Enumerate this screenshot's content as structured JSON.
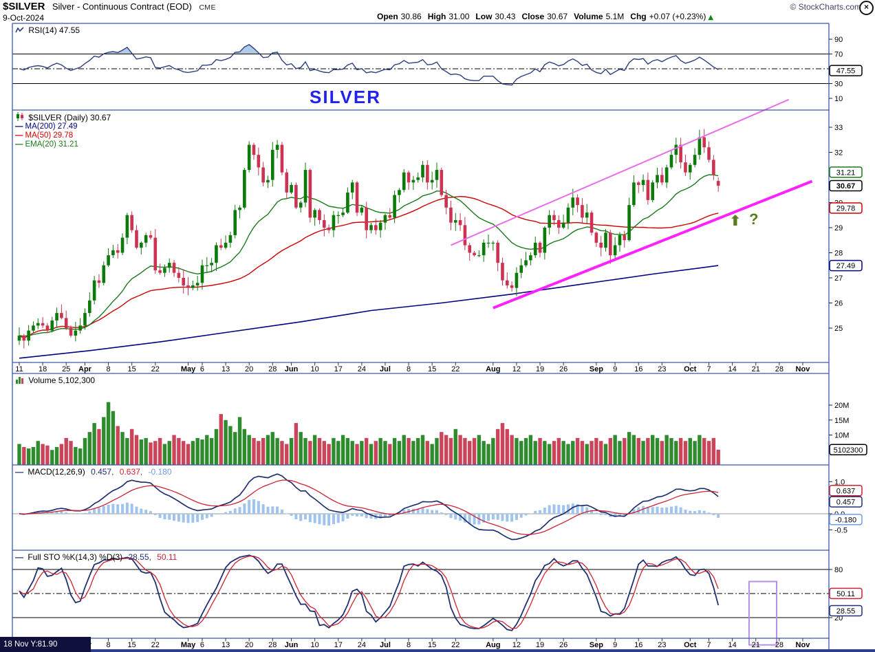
{
  "ui": {
    "legend_dash": "—"
  },
  "header": {
    "symbol": "$SILVER",
    "description": "Silver - Continuous Contract (EOD)",
    "exchange": "CME",
    "date": "9-Oct-2024",
    "copyright": "© StockCharts.com",
    "close_icon": "×",
    "chg_arrow": "▲",
    "quote": [
      {
        "label": "Open",
        "value": "30.86"
      },
      {
        "label": "High",
        "value": "31.00"
      },
      {
        "label": "Low",
        "value": "30.43"
      },
      {
        "label": "Close",
        "value": "30.67"
      },
      {
        "label": "Volume",
        "value": "5.1M"
      },
      {
        "label": "Chg",
        "value": "+0.07 (+0.23%)"
      }
    ]
  },
  "rsi_panel": {
    "label": "RSI(14) 47.55",
    "axis": [
      {
        "t": "90",
        "v": 90
      },
      {
        "t": "70",
        "v": 70
      },
      {
        "t": "30",
        "v": 30
      },
      {
        "t": "10",
        "v": 10
      }
    ],
    "boxes": [
      {
        "text": "47.55",
        "v": 47.55,
        "color": "#000000"
      }
    ],
    "bands": {
      "upper": 70,
      "lower": 30,
      "mid": 50
    }
  },
  "price_panel": {
    "watermark": "SILVER",
    "legend_title": "$SILVER (Daily) 30.67",
    "legend": [
      {
        "label": "MA(200) 27.49",
        "color": "#000080"
      },
      {
        "label": "MA(50) 29.78",
        "color": "#cc0000"
      },
      {
        "label": "EMA(20) 31.21",
        "color": "#1a7a1a"
      }
    ],
    "axis": [
      {
        "t": "33",
        "v": 33
      },
      {
        "t": "32",
        "v": 32
      },
      {
        "t": "30",
        "v": 30
      },
      {
        "t": "29",
        "v": 29
      },
      {
        "t": "28",
        "v": 28
      },
      {
        "t": "27",
        "v": 27
      },
      {
        "t": "26",
        "v": 26
      },
      {
        "t": "25",
        "v": 25
      }
    ],
    "boxes": [
      {
        "text": "31.21",
        "v": 31.21,
        "color": "#1a7a1a"
      },
      {
        "text": "30.67",
        "v": 30.67,
        "color": "#000000",
        "bold": true
      },
      {
        "text": "29.78",
        "v": 29.78,
        "color": "#cc0000"
      },
      {
        "text": "27.49",
        "v": 27.49,
        "color": "#000080"
      }
    ],
    "annotation_arrow": "⬆",
    "annotation_question": "?"
  },
  "volume_panel": {
    "label": "Volume 5,102,300",
    "axis": [
      {
        "t": "20M",
        "v": 20
      },
      {
        "t": "15M",
        "v": 15
      },
      {
        "t": "10M",
        "v": 10
      }
    ],
    "boxes": [
      {
        "text": "5102300",
        "v": 5.102,
        "color": "#000000",
        "w": 54
      }
    ]
  },
  "macd_panel": {
    "label": "MACD(12,26,9)",
    "values": [
      {
        "text": "0.457,",
        "color": "#203070"
      },
      {
        "text": "0.637,",
        "color": "#cc2233"
      },
      {
        "text": "-0.180",
        "color": "#6f9fe0"
      }
    ],
    "axis": [
      {
        "t": "1.0",
        "v": 1.0
      },
      {
        "t": "0.0",
        "v": 0.0
      },
      {
        "t": "-0.5",
        "v": -0.5
      }
    ],
    "boxes": [
      {
        "text": "0.637",
        "v": 0.637,
        "color": "#cc2233",
        "dy": -4
      },
      {
        "text": "0.457",
        "v": 0.457,
        "color": "#203070",
        "dy": 4
      },
      {
        "text": "-0.180",
        "v": -0.18,
        "color": "#6f9fe0"
      }
    ]
  },
  "sto_panel": {
    "label": "Full STO %K(14,3) %D(3)",
    "values": [
      {
        "text": "28.55,",
        "color": "#203070"
      },
      {
        "text": "50.11",
        "color": "#cc2233"
      }
    ],
    "axis": [
      {
        "t": "80",
        "v": 80
      },
      {
        "t": "20",
        "v": 20
      }
    ],
    "boxes": [
      {
        "text": "50.11",
        "v": 50.11,
        "color": "#cc2233"
      },
      {
        "text": "28.55",
        "v": 28.55,
        "color": "#203070"
      }
    ],
    "bands": {
      "upper": 80,
      "lower": 20,
      "mid": 50
    },
    "annotation_box": {
      "i1": 156,
      "i2": 161,
      "v1": 65,
      "v2": -14
    }
  },
  "status_bar": {
    "text": "18 Nov Y:81.90"
  },
  "x_axis": {
    "ticks": [
      {
        "i": 0,
        "t": "11"
      },
      {
        "i": 5,
        "t": "18"
      },
      {
        "i": 10,
        "t": "25"
      },
      {
        "i": 14,
        "t": "Apr",
        "b": true
      },
      {
        "i": 19,
        "t": "8"
      },
      {
        "i": 24,
        "t": "15"
      },
      {
        "i": 29,
        "t": "22"
      },
      {
        "i": 36,
        "t": "May",
        "b": true
      },
      {
        "i": 39,
        "t": "6"
      },
      {
        "i": 44,
        "t": "13"
      },
      {
        "i": 49,
        "t": "20"
      },
      {
        "i": 54,
        "t": "28"
      },
      {
        "i": 58,
        "t": "Jun",
        "b": true
      },
      {
        "i": 63,
        "t": "10"
      },
      {
        "i": 68,
        "t": "17"
      },
      {
        "i": 73,
        "t": "24"
      },
      {
        "i": 78,
        "t": "Jul",
        "b": true
      },
      {
        "i": 83,
        "t": "8"
      },
      {
        "i": 88,
        "t": "15"
      },
      {
        "i": 93,
        "t": "22"
      },
      {
        "i": 101,
        "t": "Aug",
        "b": true
      },
      {
        "i": 106,
        "t": "12"
      },
      {
        "i": 111,
        "t": "19"
      },
      {
        "i": 116,
        "t": "26"
      },
      {
        "i": 123,
        "t": "Sep",
        "b": true
      },
      {
        "i": 127,
        "t": "9"
      },
      {
        "i": 132,
        "t": "16"
      },
      {
        "i": 137,
        "t": "23"
      },
      {
        "i": 143,
        "t": "Oct",
        "b": true
      },
      {
        "i": 147,
        "t": "7"
      },
      {
        "i": 152,
        "t": "14"
      },
      {
        "i": 157,
        "t": "21"
      },
      {
        "i": 162,
        "t": "28"
      },
      {
        "i": 167,
        "t": "Nov",
        "b": true
      }
    ]
  },
  "chart_data": {
    "type": "candlestick",
    "title": "$SILVER Silver - Continuous Contract (EOD) CME",
    "date_range": "11-Mar-2024 to 9-Oct-2024, daily bars",
    "ylim": [
      23.6,
      33.7
    ],
    "params": {
      "rsi": 14,
      "ma_long": 200,
      "ma_short": 50,
      "ema": 20,
      "macd": [
        12,
        26,
        9
      ],
      "sto_k": "%K(14,3)",
      "sto_d": "%D(3)"
    },
    "displayed": {
      "rsi": 47.55,
      "close": 30.67,
      "ma200": 27.49,
      "ma50": 29.78,
      "ema20": 31.21,
      "volume": 5102300,
      "macd": 0.457,
      "macd_signal": 0.637,
      "macd_hist": -0.18,
      "sto_k": 28.55,
      "sto_d": 50.11
    },
    "last_ohlc": {
      "open": 30.86,
      "high": 31.0,
      "low": 30.43,
      "close": 30.67
    },
    "closes": [
      24.7,
      24.5,
      24.9,
      25.1,
      25.2,
      25.1,
      24.9,
      25.3,
      25.6,
      25.4,
      25.0,
      24.7,
      24.9,
      25.1,
      25.6,
      26.1,
      26.9,
      26.8,
      27.5,
      27.9,
      28.1,
      28.0,
      28.6,
      29.5,
      28.9,
      28.2,
      28.4,
      28.7,
      28.6,
      27.3,
      27.2,
      27.4,
      27.6,
      27.2,
      27.0,
      26.7,
      26.6,
      26.7,
      26.8,
      27.5,
      27.5,
      27.6,
      28.3,
      28.2,
      28.4,
      28.7,
      29.7,
      29.8,
      31.3,
      32.3,
      31.9,
      31.4,
      30.8,
      30.9,
      32.1,
      32.3,
      31.2,
      30.4,
      30.7,
      29.8,
      30.0,
      31.3,
      29.4,
      29.7,
      29.3,
      29.0,
      28.9,
      29.5,
      29.5,
      29.6,
      30.4,
      30.8,
      29.6,
      29.8,
      28.9,
      29.1,
      28.9,
      29.2,
      29.5,
      29.4,
      30.3,
      30.5,
      31.2,
      30.8,
      30.9,
      31.0,
      31.5,
      30.8,
      30.9,
      31.3,
      30.3,
      29.8,
      29.2,
      29.3,
      29.1,
      28.3,
      28.0,
      27.9,
      27.9,
      28.4,
      28.4,
      28.4,
      27.6,
      26.9,
      26.7,
      26.6,
      27.2,
      27.5,
      27.7,
      27.9,
      28.4,
      28.0,
      29.0,
      29.5,
      29.3,
      29.0,
      29.2,
      29.8,
      30.2,
      29.9,
      29.4,
      29.6,
      28.8,
      28.4,
      28.2,
      28.8,
      27.9,
      28.3,
      28.7,
      28.5,
      29.9,
      30.8,
      30.7,
      30.9,
      30.1,
      30.8,
      31.1,
      30.8,
      31.4,
      31.9,
      32.3,
      31.6,
      31.2,
      31.5,
      31.9,
      32.6,
      32.2,
      31.7,
      31.1,
      30.67
    ],
    "volumes_m": [
      7,
      6,
      5.5,
      6,
      8,
      7,
      6.5,
      5,
      6,
      7,
      9,
      8,
      6,
      5.5,
      9,
      11,
      14,
      12,
      16,
      21,
      18,
      13,
      11,
      9,
      12,
      10,
      8.5,
      9,
      7.5,
      8,
      9,
      7,
      8,
      10,
      9,
      8,
      7,
      8,
      9,
      8.5,
      10,
      9,
      12,
      17,
      15,
      13,
      11,
      16,
      12,
      10,
      9,
      8,
      9,
      10,
      11,
      9,
      8,
      7,
      9,
      14,
      11,
      9,
      8,
      10,
      9,
      8,
      7,
      9,
      8,
      10,
      9,
      8,
      7,
      8,
      9,
      7,
      8,
      9,
      8,
      7,
      9,
      8,
      10,
      9,
      8,
      9,
      10,
      8,
      7,
      9,
      11,
      10,
      9,
      12,
      10,
      9,
      8,
      9,
      10,
      8,
      7,
      9,
      12,
      14,
      12,
      10,
      9,
      8,
      9,
      10,
      8,
      9,
      8,
      7,
      8,
      9,
      8,
      7,
      8,
      9,
      8,
      7,
      8,
      9,
      8,
      7,
      9,
      10,
      8,
      9,
      11,
      10,
      9,
      8,
      9,
      10,
      9,
      8,
      10,
      9,
      8,
      9,
      8,
      9,
      8,
      10,
      9,
      8,
      9,
      5.1
    ],
    "ma200_anchors": [
      [
        0,
        23.8
      ],
      [
        15,
        24.1
      ],
      [
        30,
        24.45
      ],
      [
        45,
        24.85
      ],
      [
        60,
        25.25
      ],
      [
        75,
        25.7
      ],
      [
        90,
        26.0
      ],
      [
        105,
        26.35
      ],
      [
        120,
        26.75
      ],
      [
        135,
        27.15
      ],
      [
        149,
        27.49
      ]
    ],
    "trendlines": [
      {
        "i1": 92,
        "p1": 28.3,
        "i2": 164,
        "p2": 34.1,
        "color": "#e86ee8",
        "width": 2
      },
      {
        "i1": 101,
        "p1": 25.8,
        "i2": 169,
        "p2": 30.85,
        "color": "#ff22ff",
        "width": 4
      }
    ]
  }
}
